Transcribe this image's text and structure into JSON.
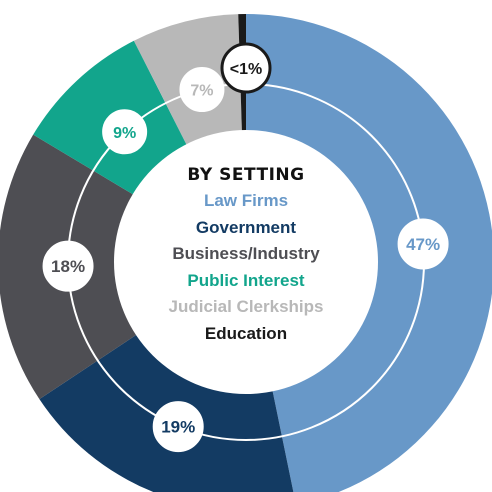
{
  "chart_data": {
    "type": "donut",
    "title": "BY SETTING",
    "categories": [
      "Law Firms",
      "Government",
      "Business/Industry",
      "Public Interest",
      "Judicial Clerkships",
      "Education"
    ],
    "values": [
      47,
      19,
      18,
      9,
      7,
      0.5
    ],
    "labels": [
      "47%",
      "19%",
      "18%",
      "9%",
      "7%",
      "<1%"
    ],
    "colors": [
      "#6898c8",
      "#133b63",
      "#4e4e53",
      "#12a58c",
      "#b8b8b8",
      "#1a1a1a"
    ],
    "legend_colors": [
      "#6898c8",
      "#133b63",
      "#4e4e53",
      "#12a58c",
      "#b8b8b8",
      "#1a1a1a"
    ],
    "label_colors": [
      "#6898c8",
      "#133b63",
      "#4e4e53",
      "#12a58c",
      "#b8b8b8",
      "#1a1a1a"
    ],
    "start_angle_deg": 0,
    "direction": "clockwise"
  }
}
